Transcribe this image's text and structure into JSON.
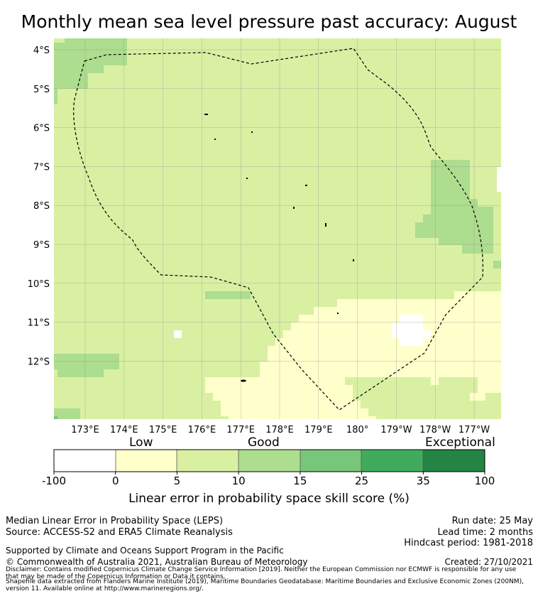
{
  "title": "Monthly mean sea level pressure past accuracy: August",
  "map": {
    "lat_labels": [
      "4°S",
      "5°S",
      "6°S",
      "7°S",
      "8°S",
      "9°S",
      "10°S",
      "11°S",
      "12°S"
    ],
    "lon_labels": [
      "173°E",
      "174°E",
      "175°E",
      "176°E",
      "177°E",
      "178°E",
      "179°E",
      "180°",
      "179°W",
      "178°W",
      "177°W"
    ],
    "colors": {
      "white": "#ffffff",
      "low": "#ffffcc",
      "good_light": "#d9f0a3",
      "good": "#addd8e",
      "high": "#78c679",
      "higher": "#41ab5d",
      "exceptional": "#238443"
    },
    "boundary": "dashed-eez-outline"
  },
  "legend": {
    "categories": [
      "Low",
      "Good",
      "Exceptional"
    ],
    "ticks": [
      "-100",
      "0",
      "5",
      "10",
      "15",
      "25",
      "35",
      "100"
    ],
    "label": "Linear error in probability space skill score (%)"
  },
  "footer": {
    "line1": "Median Linear Error in Probability Space (LEPS)",
    "line2": "Source: ACCESS-S2 and ERA5 Climate Reanalysis",
    "run_date": "Run date: 25 May",
    "lead_time": "Lead time: 2 months",
    "hindcast": "Hindcast period: 1981-2018",
    "support": "Supported by Climate and Oceans Support Program in the Pacific",
    "copyright": "© Commonwealth of Australia 2021, Australian Bureau of Meteorology",
    "created": "Created: 27/10/2021",
    "disclaimer1": "Disclaimer: Contains modified Copernicus Climate Change Service Information [2019]. Neither the European Commission nor ECMWF is responsible for any use",
    "disclaimer2": "that may be made of the Copernicus Information or Data it contains.",
    "disclaimer3": "Shapefile data extracted from Flanders Marine Institute (2019), Maritime Boundaries Geodatabase: Maritime Boundaries and Exclusive Economic Zones (200NM),",
    "disclaimer4": "version 11. Available online at http://www.marineregions.org/."
  }
}
